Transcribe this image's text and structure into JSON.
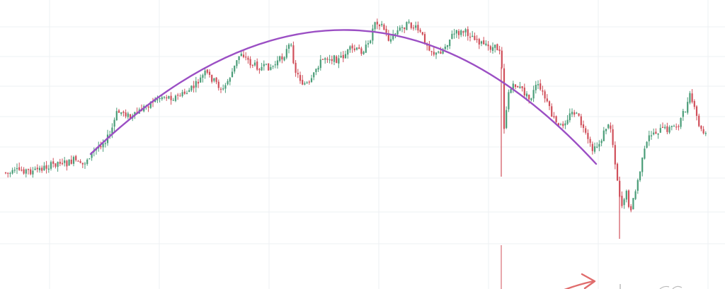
{
  "chart_data": {
    "type": "candlestick",
    "title": "",
    "xlabel": "",
    "ylabel": "",
    "ylim": [
      330,
      30
    ],
    "grid": true,
    "overlays": [
      {
        "kind": "rounding-top-arc",
        "color": "#9b4fc4"
      },
      {
        "kind": "arrow",
        "color": "#e06c6c"
      }
    ],
    "colors": {
      "up": "#4a9d78",
      "down": "#d04f5a",
      "grid": "#eef0f3",
      "arc": "#9b4fc4"
    },
    "anchors": [
      [
        0,
        242
      ],
      [
        15,
        246
      ],
      [
        30,
        240
      ],
      [
        45,
        243
      ],
      [
        60,
        238
      ],
      [
        75,
        233
      ],
      [
        85,
        228
      ],
      [
        95,
        232
      ],
      [
        105,
        226
      ],
      [
        115,
        236
      ],
      [
        125,
        222
      ],
      [
        140,
        206
      ],
      [
        155,
        192
      ],
      [
        165,
        160
      ],
      [
        175,
        158
      ],
      [
        185,
        168
      ],
      [
        200,
        155
      ],
      [
        215,
        143
      ],
      [
        230,
        136
      ],
      [
        245,
        138
      ],
      [
        260,
        133
      ],
      [
        275,
        122
      ],
      [
        290,
        103
      ],
      [
        300,
        112
      ],
      [
        315,
        128
      ],
      [
        330,
        98
      ],
      [
        340,
        73
      ],
      [
        355,
        91
      ],
      [
        370,
        96
      ],
      [
        385,
        94
      ],
      [
        400,
        80
      ],
      [
        410,
        62
      ],
      [
        418,
        103
      ],
      [
        428,
        118
      ],
      [
        438,
        120
      ],
      [
        448,
        93
      ],
      [
        460,
        80
      ],
      [
        478,
        85
      ],
      [
        495,
        70
      ],
      [
        510,
        72
      ],
      [
        520,
        65
      ],
      [
        530,
        28
      ],
      [
        540,
        36
      ],
      [
        550,
        58
      ],
      [
        560,
        45
      ],
      [
        575,
        34
      ],
      [
        590,
        42
      ],
      [
        605,
        65
      ],
      [
        615,
        78
      ],
      [
        625,
        70
      ],
      [
        640,
        48
      ],
      [
        655,
        45
      ],
      [
        670,
        52
      ],
      [
        685,
        66
      ],
      [
        700,
        68
      ],
      [
        708,
        70
      ],
      [
        712,
        180
      ],
      [
        718,
        130
      ],
      [
        728,
        120
      ],
      [
        738,
        128
      ],
      [
        748,
        142
      ],
      [
        758,
        120
      ],
      [
        768,
        135
      ],
      [
        780,
        165
      ],
      [
        790,
        182
      ],
      [
        800,
        168
      ],
      [
        810,
        158
      ],
      [
        818,
        168
      ],
      [
        828,
        195
      ],
      [
        838,
        215
      ],
      [
        848,
        200
      ],
      [
        856,
        180
      ],
      [
        862,
        178
      ],
      [
        868,
        222
      ],
      [
        873,
        262
      ],
      [
        878,
        292
      ],
      [
        884,
        270
      ],
      [
        890,
        298
      ],
      [
        896,
        278
      ],
      [
        902,
        250
      ],
      [
        910,
        215
      ],
      [
        918,
        190
      ],
      [
        930,
        185
      ],
      [
        945,
        182
      ],
      [
        958,
        176
      ],
      [
        968,
        155
      ],
      [
        975,
        135
      ],
      [
        982,
        160
      ],
      [
        990,
        185
      ],
      [
        1000,
        195
      ]
    ],
    "spikes": [
      {
        "x": 708,
        "y_top": 95,
        "y_bottom": 250
      },
      {
        "x": 875,
        "y_top": 250,
        "y_bottom": 338
      }
    ]
  }
}
